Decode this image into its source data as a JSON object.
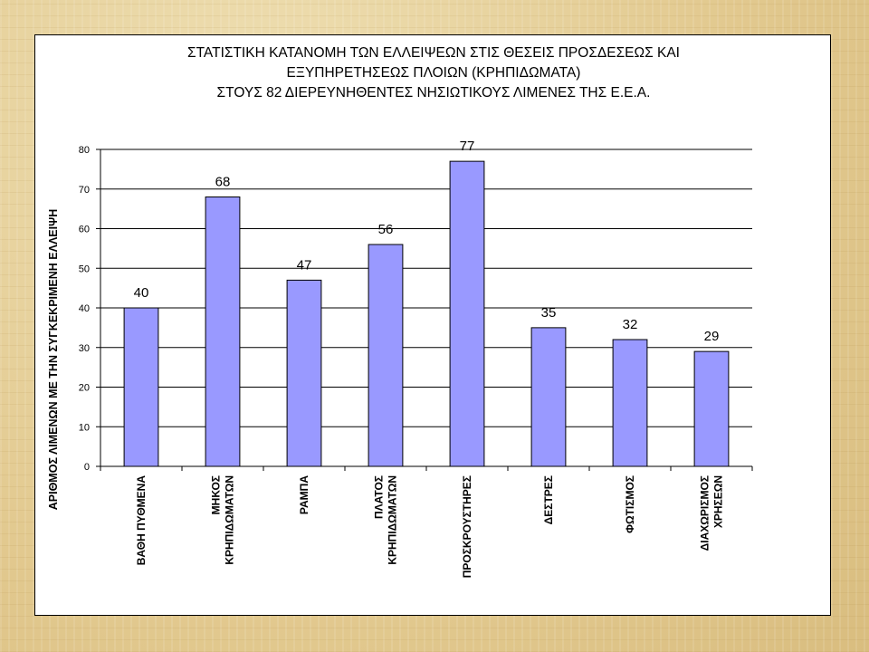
{
  "chart_data": {
    "type": "bar",
    "title_lines": [
      "ΣΤΑΤΙΣΤΙΚΗ ΚΑΤΑΝΟΜΗ ΤΩΝ ΕΛΛΕΙΨΕΩΝ ΣΤΙΣ ΘΕΣΕΙΣ ΠΡΟΣΔΕΣΕΩΣ ΚΑΙ",
      "ΕΞΥΠΗΡΕΤΗΣΕΩΣ ΠΛΟΙΩΝ (ΚΡΗΠΙΔΩΜΑΤΑ)",
      "ΣΤΟΥΣ 82 ΔΙΕΡΕΥΝΗΘΕΝΤΕΣ ΝΗΣΙΩΤΙΚΟΥΣ ΛΙΜΕΝΕΣ ΤΗΣ Ε.Ε.Α."
    ],
    "ylabel": "ΑΡΙΘΜΟΣ ΛΙΜΕΝΩΝ ΜΕ ΤΗΝ ΣΥΓΚΕΚΡΙΜΕΝΗ ΕΛΛΕΙΨΗ",
    "xlabel": "",
    "ylim": [
      0,
      80
    ],
    "y_ticks": [
      0,
      10,
      20,
      30,
      40,
      50,
      60,
      70,
      80
    ],
    "grid": true,
    "categories": [
      [
        "ΒΑΘΗ ΠΥΘΜΕΝΑ"
      ],
      [
        "ΜΗΚΟΣ",
        "ΚΡΗΠΙΔΩΜΑΤΩΝ"
      ],
      [
        "ΡΑΜΠΑ"
      ],
      [
        "ΠΛΑΤΟΣ",
        "ΚΡΗΠΙΔΩΜΑΤΩΝ"
      ],
      [
        "ΠΡΟΣΚΡΟΥΣΤΗΡΕΣ"
      ],
      [
        "ΔΕΣΤΡΕΣ"
      ],
      [
        "ΦΩΤΙΣΜΟΣ"
      ],
      [
        "ΔΙΑΧΩΡΙΣΜΟΣ",
        "ΧΡΗΣΕΩΝ"
      ]
    ],
    "values": [
      40,
      68,
      47,
      56,
      77,
      35,
      32,
      29
    ],
    "bar_color": "#9999ff",
    "bar_edge_color": "#000000"
  }
}
